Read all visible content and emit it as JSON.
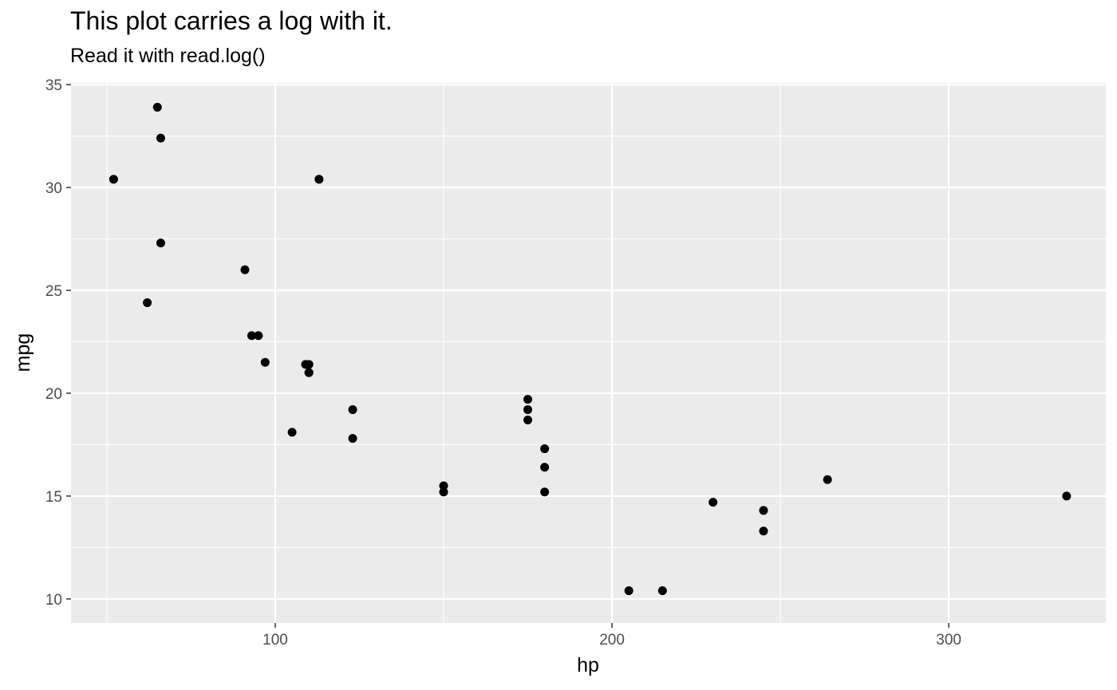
{
  "chart_data": {
    "type": "scatter",
    "title": "This plot carries a log with it.",
    "subtitle": "Read it with read.log()",
    "xlabel": "hp",
    "ylabel": "mpg",
    "xlim": [
      39.35,
      346.65
    ],
    "ylim": [
      8.83,
      35.08
    ],
    "x_ticks": [
      100,
      200,
      300
    ],
    "y_ticks": [
      10,
      15,
      20,
      25,
      30,
      35
    ],
    "x_minor_ticks": [
      50,
      150,
      250
    ],
    "y_minor_ticks": [
      12.5,
      17.5,
      22.5,
      27.5,
      32.5
    ],
    "grid": true,
    "panel_color": "#ebebeb",
    "grid_color": "#ffffff",
    "point_color": "#000000",
    "points": [
      {
        "x": 110,
        "y": 21.0
      },
      {
        "x": 110,
        "y": 21.0
      },
      {
        "x": 93,
        "y": 22.8
      },
      {
        "x": 110,
        "y": 21.4
      },
      {
        "x": 175,
        "y": 18.7
      },
      {
        "x": 105,
        "y": 18.1
      },
      {
        "x": 245,
        "y": 14.3
      },
      {
        "x": 62,
        "y": 24.4
      },
      {
        "x": 95,
        "y": 22.8
      },
      {
        "x": 123,
        "y": 19.2
      },
      {
        "x": 123,
        "y": 17.8
      },
      {
        "x": 180,
        "y": 16.4
      },
      {
        "x": 180,
        "y": 17.3
      },
      {
        "x": 180,
        "y": 15.2
      },
      {
        "x": 205,
        "y": 10.4
      },
      {
        "x": 215,
        "y": 10.4
      },
      {
        "x": 230,
        "y": 14.7
      },
      {
        "x": 66,
        "y": 32.4
      },
      {
        "x": 52,
        "y": 30.4
      },
      {
        "x": 65,
        "y": 33.9
      },
      {
        "x": 97,
        "y": 21.5
      },
      {
        "x": 150,
        "y": 15.5
      },
      {
        "x": 150,
        "y": 15.2
      },
      {
        "x": 245,
        "y": 13.3
      },
      {
        "x": 175,
        "y": 19.2
      },
      {
        "x": 66,
        "y": 27.3
      },
      {
        "x": 91,
        "y": 26.0
      },
      {
        "x": 113,
        "y": 30.4
      },
      {
        "x": 264,
        "y": 15.8
      },
      {
        "x": 175,
        "y": 19.7
      },
      {
        "x": 335,
        "y": 15.0
      },
      {
        "x": 109,
        "y": 21.4
      }
    ]
  }
}
